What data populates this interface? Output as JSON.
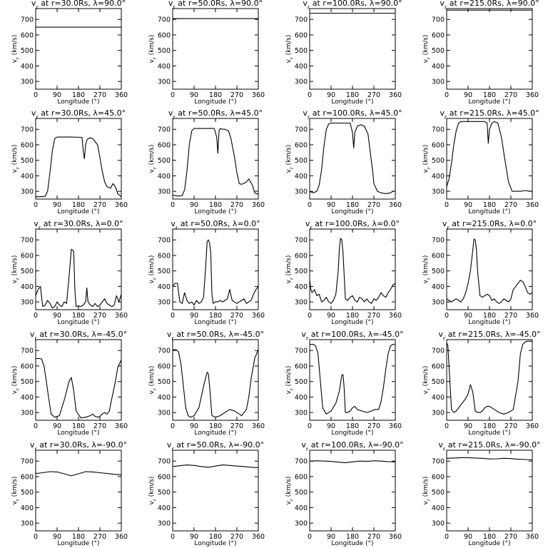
{
  "shared": {
    "xlabel": "Longitude (°)",
    "ylabel": "v_r (km/s)",
    "xlim": [
      0,
      360
    ],
    "ylim": [
      250,
      770
    ],
    "xticks": [
      0,
      90,
      180,
      270,
      360
    ],
    "yticks": [
      300,
      400,
      500,
      600,
      700
    ],
    "line_color": "#000000"
  },
  "chart_data": [
    {
      "type": "line",
      "title": "v_r at r=30.0Rs, λ=90.0°",
      "xlabel": "Longitude (°)",
      "ylabel": "v_r (km/s)",
      "x": [
        0,
        360
      ],
      "series": [
        {
          "values": [
            650,
            650
          ]
        }
      ]
    },
    {
      "type": "line",
      "title": "v_r at r=50.0Rs, λ=90.0°",
      "xlabel": "Longitude (°)",
      "ylabel": "v_r (km/s)",
      "x": [
        0,
        360
      ],
      "series": [
        {
          "values": [
            705,
            705
          ]
        }
      ]
    },
    {
      "type": "line",
      "title": "v_r at r=100.0Rs, λ=90.0°",
      "xlabel": "Longitude (°)",
      "ylabel": "v_r (km/s)",
      "x": [
        0,
        360
      ],
      "series": [
        {
          "values": [
            740,
            740
          ]
        }
      ]
    },
    {
      "type": "line",
      "title": "v_r at r=215.0Rs, λ=90.0°",
      "xlabel": "Longitude (°)",
      "ylabel": "v_r (km/s)",
      "x": [
        0,
        360
      ],
      "series": [
        {
          "values": [
            760,
            760
          ]
        }
      ]
    },
    {
      "type": "line",
      "title": "v_r at r=30.0Rs, λ=45.0°",
      "xlabel": "Longitude (°)",
      "ylabel": "v_r (km/s)",
      "x": [
        0,
        20,
        40,
        50,
        60,
        70,
        80,
        90,
        120,
        150,
        195,
        200,
        205,
        210,
        215,
        220,
        230,
        240,
        260,
        270,
        280,
        290,
        300,
        315,
        325,
        335,
        345,
        360
      ],
      "series": [
        {
          "values": [
            265,
            265,
            268,
            300,
            420,
            560,
            640,
            650,
            650,
            650,
            648,
            560,
            510,
            600,
            630,
            640,
            645,
            640,
            600,
            520,
            430,
            360,
            330,
            320,
            350,
            330,
            285,
            265
          ]
        }
      ]
    },
    {
      "type": "line",
      "title": "v_r at r=50.0Rs, λ=45.0°",
      "xlabel": "Longitude (°)",
      "ylabel": "v_r (km/s)",
      "x": [
        0,
        20,
        40,
        50,
        60,
        70,
        80,
        90,
        120,
        150,
        175,
        185,
        190,
        195,
        200,
        210,
        220,
        235,
        245,
        260,
        270,
        280,
        290,
        310,
        320,
        335,
        345,
        360
      ],
      "series": [
        {
          "values": [
            275,
            270,
            272,
            310,
            430,
            600,
            690,
            705,
            705,
            705,
            705,
            650,
            545,
            690,
            705,
            700,
            700,
            690,
            640,
            520,
            420,
            350,
            345,
            360,
            380,
            340,
            290,
            280
          ]
        }
      ]
    },
    {
      "type": "line",
      "title": "v_r at r=100.0Rs, λ=45.0°",
      "xlabel": "Longitude (°)",
      "ylabel": "v_r (km/s)",
      "x": [
        0,
        15,
        30,
        40,
        50,
        60,
        70,
        80,
        90,
        120,
        150,
        170,
        180,
        185,
        190,
        200,
        215,
        230,
        245,
        255,
        265,
        270,
        285,
        300,
        320,
        340,
        350,
        360
      ],
      "series": [
        {
          "values": [
            300,
            290,
            300,
            340,
            440,
            590,
            700,
            735,
            740,
            740,
            740,
            740,
            680,
            580,
            680,
            720,
            730,
            720,
            670,
            550,
            430,
            350,
            300,
            290,
            285,
            290,
            300,
            300
          ]
        }
      ]
    },
    {
      "type": "line",
      "title": "v_r at r=215.0Rs, λ=45.0°",
      "xlabel": "Longitude (°)",
      "ylabel": "v_r (km/s)",
      "x": [
        0,
        10,
        20,
        30,
        40,
        50,
        60,
        80,
        100,
        120,
        140,
        160,
        170,
        175,
        180,
        190,
        200,
        215,
        230,
        245,
        260,
        275,
        290,
        310,
        330,
        350,
        360
      ],
      "series": [
        {
          "values": [
            330,
            380,
            480,
            600,
            690,
            740,
            750,
            750,
            750,
            750,
            750,
            750,
            740,
            610,
            700,
            740,
            750,
            740,
            650,
            500,
            360,
            300,
            300,
            300,
            305,
            300,
            300
          ]
        }
      ]
    },
    {
      "type": "line",
      "title": "v_r at r=30.0Rs, λ=0.0°",
      "xlabel": "Longitude (°)",
      "ylabel": "v_r (km/s)",
      "x": [
        0,
        10,
        20,
        25,
        30,
        40,
        50,
        60,
        70,
        80,
        90,
        100,
        110,
        120,
        130,
        140,
        150,
        155,
        160,
        165,
        170,
        180,
        190,
        200,
        210,
        215,
        220,
        230,
        240,
        250,
        260,
        270,
        280,
        290,
        300,
        310,
        320,
        330,
        340,
        350,
        360
      ],
      "series": [
        {
          "values": [
            340,
            380,
            400,
            330,
            270,
            280,
            310,
            290,
            260,
            270,
            300,
            280,
            270,
            300,
            290,
            460,
            640,
            635,
            625,
            370,
            270,
            275,
            270,
            280,
            300,
            390,
            300,
            280,
            270,
            290,
            270,
            280,
            300,
            320,
            290,
            280,
            270,
            280,
            340,
            300,
            350
          ]
        }
      ]
    },
    {
      "type": "line",
      "title": "v_r at r=50.0Rs, λ=0.0°",
      "xlabel": "Longitude (°)",
      "ylabel": "v_r (km/s)",
      "x": [
        0,
        10,
        20,
        30,
        40,
        50,
        60,
        70,
        80,
        90,
        100,
        110,
        120,
        130,
        140,
        145,
        150,
        155,
        160,
        165,
        170,
        180,
        190,
        200,
        210,
        220,
        230,
        240,
        250,
        260,
        270,
        280,
        290,
        300,
        310,
        320,
        330,
        340,
        350,
        360
      ],
      "series": [
        {
          "values": [
            400,
            420,
            420,
            300,
            290,
            360,
            310,
            290,
            300,
            280,
            310,
            290,
            300,
            330,
            560,
            690,
            700,
            680,
            620,
            350,
            290,
            300,
            300,
            310,
            300,
            310,
            320,
            380,
            310,
            300,
            290,
            300,
            310,
            320,
            290,
            300,
            310,
            350,
            380,
            400
          ]
        }
      ]
    },
    {
      "type": "line",
      "title": "v_r at r=100.0Rs, λ=0.0°",
      "xlabel": "Longitude (°)",
      "ylabel": "v_r (km/s)",
      "x": [
        0,
        5,
        10,
        20,
        30,
        40,
        50,
        60,
        70,
        80,
        90,
        100,
        110,
        120,
        125,
        130,
        135,
        140,
        150,
        160,
        170,
        180,
        190,
        200,
        210,
        220,
        230,
        240,
        250,
        260,
        270,
        280,
        290,
        300,
        310,
        320,
        330,
        340,
        350,
        360
      ],
      "series": [
        {
          "values": [
            440,
            380,
            360,
            380,
            340,
            350,
            300,
            310,
            330,
            300,
            290,
            310,
            350,
            500,
            650,
            710,
            700,
            620,
            320,
            310,
            330,
            340,
            310,
            300,
            330,
            320,
            300,
            320,
            300,
            290,
            320,
            310,
            330,
            360,
            340,
            330,
            360,
            380,
            410,
            420
          ]
        }
      ]
    },
    {
      "type": "line",
      "title": "v_r at r=215.0Rs, λ=0.0°",
      "xlabel": "Longitude (°)",
      "ylabel": "v_r (km/s)",
      "x": [
        0,
        10,
        20,
        30,
        40,
        50,
        60,
        70,
        80,
        90,
        100,
        110,
        115,
        120,
        125,
        130,
        140,
        150,
        160,
        170,
        180,
        190,
        200,
        210,
        220,
        230,
        240,
        250,
        260,
        270,
        280,
        290,
        300,
        310,
        320,
        330,
        340,
        350,
        360
      ],
      "series": [
        {
          "values": [
            320,
            310,
            300,
            310,
            320,
            310,
            300,
            320,
            360,
            420,
            500,
            640,
            705,
            700,
            640,
            500,
            340,
            330,
            340,
            350,
            340,
            310,
            320,
            300,
            290,
            300,
            320,
            310,
            300,
            320,
            380,
            400,
            420,
            440,
            430,
            400,
            360,
            350,
            360
          ]
        }
      ]
    },
    {
      "type": "line",
      "title": "v_r at r=30.0Rs, λ=-45.0°",
      "xlabel": "Longitude (°)",
      "ylabel": "v_r (km/s)",
      "x": [
        0,
        15,
        25,
        35,
        45,
        55,
        65,
        80,
        100,
        120,
        140,
        150,
        160,
        170,
        190,
        210,
        230,
        240,
        250,
        260,
        270,
        280,
        290,
        300,
        310,
        320,
        335,
        345,
        360
      ],
      "series": [
        {
          "values": [
            648,
            648,
            645,
            600,
            500,
            390,
            290,
            270,
            280,
            380,
            500,
            525,
            440,
            310,
            265,
            270,
            280,
            290,
            275,
            270,
            275,
            290,
            300,
            290,
            310,
            390,
            500,
            590,
            640
          ]
        }
      ]
    },
    {
      "type": "line",
      "title": "v_r at r=50.0Rs, λ=-45.0°",
      "xlabel": "Longitude (°)",
      "ylabel": "v_r (km/s)",
      "x": [
        0,
        15,
        25,
        35,
        45,
        55,
        65,
        75,
        90,
        110,
        130,
        145,
        150,
        155,
        165,
        180,
        200,
        220,
        240,
        260,
        280,
        290,
        300,
        310,
        320,
        330,
        345,
        360
      ],
      "series": [
        {
          "values": [
            705,
            705,
            690,
            610,
            470,
            330,
            280,
            270,
            280,
            330,
            470,
            560,
            550,
            470,
            280,
            270,
            280,
            300,
            320,
            310,
            290,
            280,
            300,
            320,
            400,
            520,
            650,
            705
          ]
        }
      ]
    },
    {
      "type": "line",
      "title": "v_r at r=100.0Rs, λ=-45.0°",
      "xlabel": "Longitude (°)",
      "ylabel": "v_r (km/s)",
      "x": [
        0,
        15,
        25,
        35,
        45,
        55,
        70,
        90,
        110,
        125,
        135,
        140,
        145,
        150,
        160,
        170,
        180,
        190,
        200,
        220,
        240,
        260,
        275,
        290,
        300,
        310,
        320,
        330,
        340,
        350,
        360
      ],
      "series": [
        {
          "values": [
            740,
            740,
            730,
            680,
            500,
            330,
            290,
            310,
            360,
            440,
            540,
            545,
            460,
            300,
            300,
            310,
            330,
            340,
            320,
            310,
            300,
            310,
            320,
            320,
            370,
            460,
            580,
            680,
            730,
            740,
            740
          ]
        }
      ]
    },
    {
      "type": "line",
      "title": "v_r at r=215.0Rs, λ=-45.0°",
      "xlabel": "Longitude (°)",
      "ylabel": "v_r (km/s)",
      "x": [
        0,
        5,
        10,
        15,
        20,
        30,
        40,
        60,
        80,
        90,
        100,
        110,
        120,
        130,
        140,
        150,
        160,
        170,
        180,
        200,
        220,
        240,
        260,
        280,
        300,
        310,
        320,
        330,
        340,
        350,
        360
      ],
      "series": [
        {
          "values": [
            750,
            730,
            600,
            460,
            320,
            300,
            310,
            350,
            390,
            420,
            480,
            430,
            310,
            300,
            300,
            310,
            330,
            340,
            340,
            320,
            300,
            290,
            300,
            320,
            500,
            680,
            740,
            755,
            760,
            760,
            760
          ]
        }
      ]
    },
    {
      "type": "line",
      "title": "v_r at r=30.0Rs, λ=-90.0°",
      "xlabel": "Longitude (°)",
      "ylabel": "v_r (km/s)",
      "x": [
        0,
        30,
        60,
        90,
        120,
        150,
        180,
        210,
        240,
        270,
        300,
        330,
        360
      ],
      "series": [
        {
          "values": [
            620,
            625,
            632,
            630,
            618,
            605,
            618,
            632,
            630,
            625,
            620,
            615,
            612
          ]
        }
      ]
    },
    {
      "type": "line",
      "title": "v_r at r=50.0Rs, λ=-90.0°",
      "xlabel": "Longitude (°)",
      "ylabel": "v_r (km/s)",
      "x": [
        0,
        30,
        60,
        90,
        120,
        150,
        180,
        210,
        240,
        270,
        300,
        330,
        360
      ],
      "series": [
        {
          "values": [
            665,
            670,
            675,
            672,
            665,
            660,
            668,
            675,
            672,
            668,
            665,
            660,
            658
          ]
        }
      ]
    },
    {
      "type": "line",
      "title": "v_r at r=100.0Rs, λ=-90.0°",
      "xlabel": "Longitude (°)",
      "ylabel": "v_r (km/s)",
      "x": [
        0,
        30,
        60,
        90,
        120,
        150,
        180,
        210,
        240,
        270,
        300,
        330,
        360
      ],
      "series": [
        {
          "values": [
            700,
            702,
            700,
            698,
            693,
            690,
            695,
            700,
            698,
            702,
            700,
            696,
            695
          ]
        }
      ]
    },
    {
      "type": "line",
      "title": "v_r at r=215.0Rs, λ=-90.0°",
      "xlabel": "Longitude (°)",
      "ylabel": "v_r (km/s)",
      "x": [
        0,
        30,
        60,
        90,
        120,
        150,
        180,
        210,
        240,
        270,
        300,
        330,
        360
      ],
      "series": [
        {
          "values": [
            718,
            720,
            722,
            722,
            720,
            718,
            714,
            715,
            718,
            716,
            712,
            710,
            708
          ]
        }
      ]
    }
  ]
}
